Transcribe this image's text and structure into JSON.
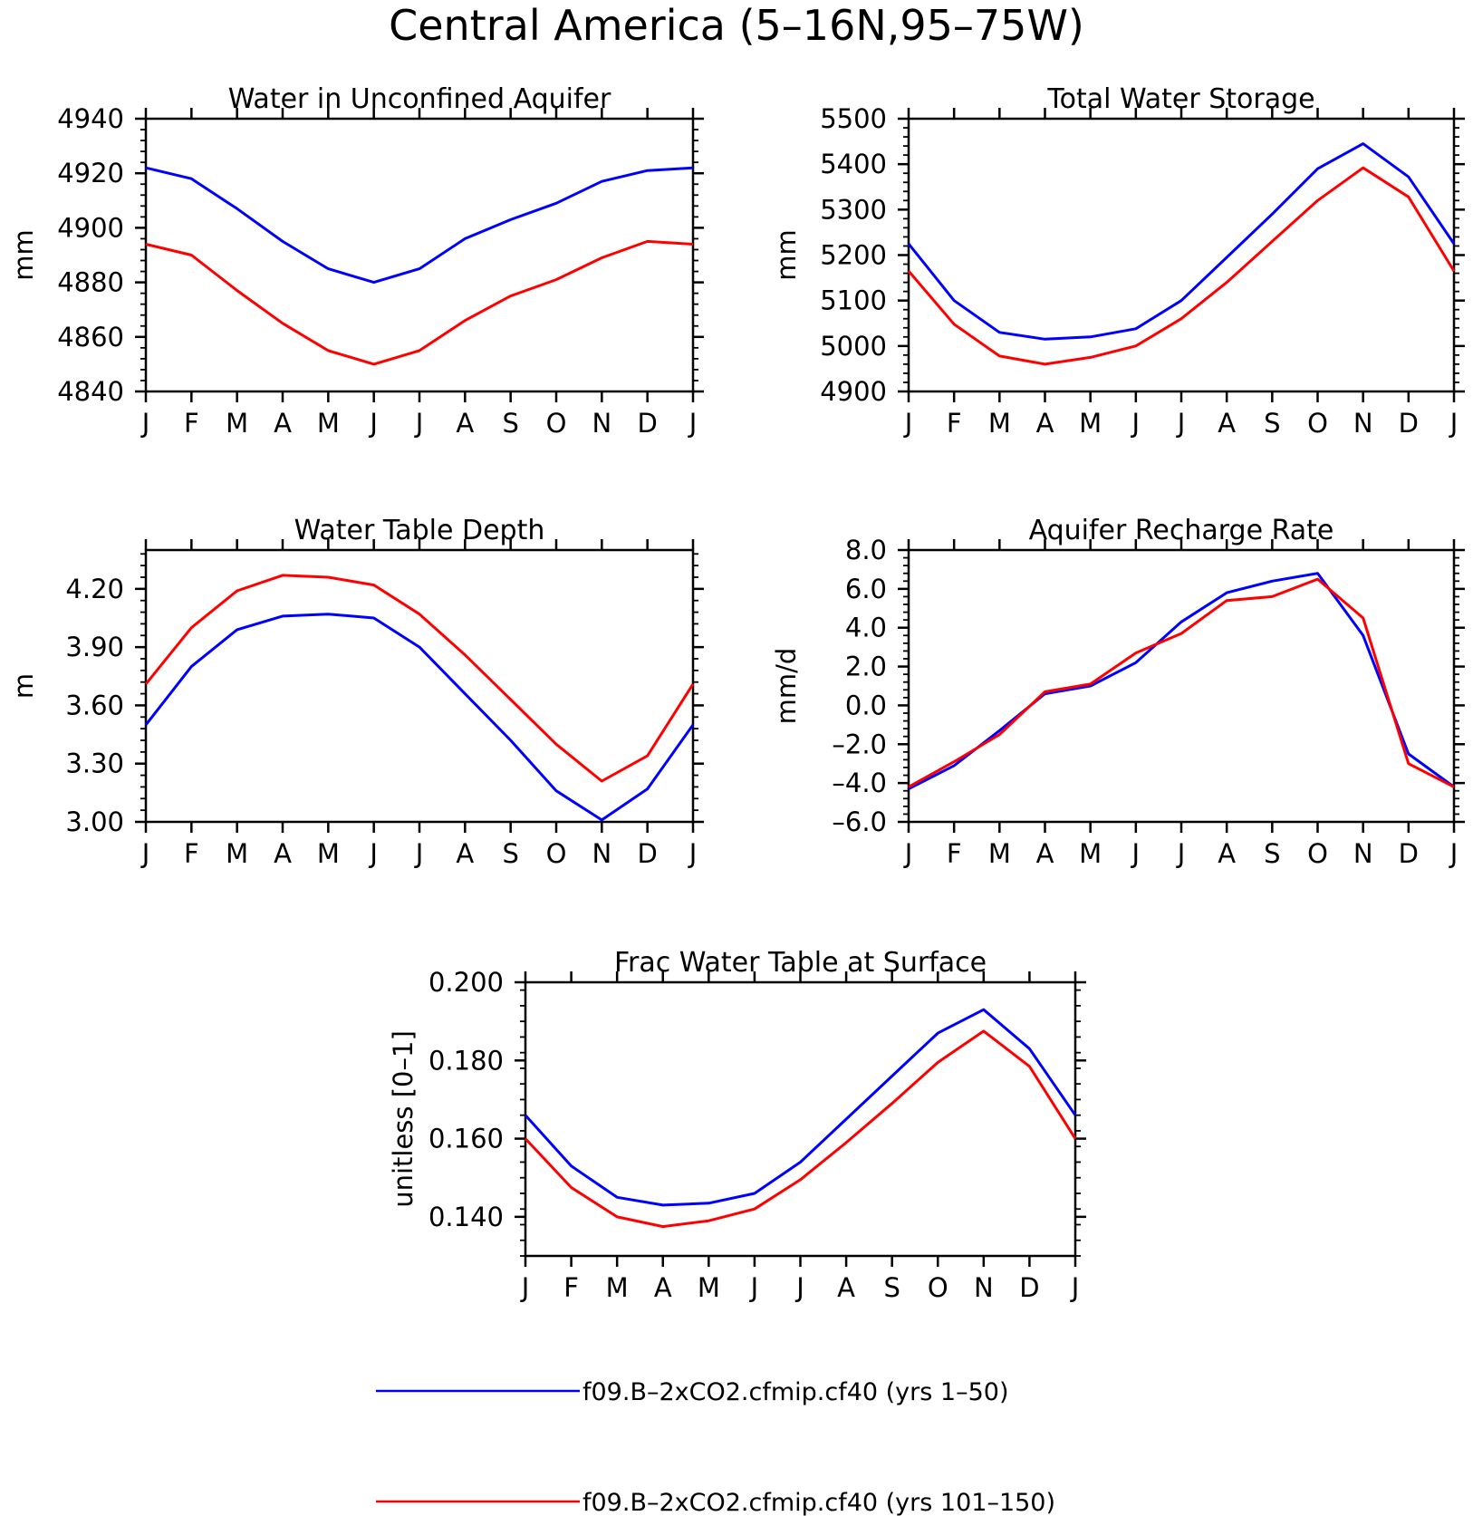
{
  "figure": {
    "title": "Central America (5–16N,95–75W)"
  },
  "legend": {
    "items": [
      {
        "label": "f09.B–2xCO2.cfmip.cf40 (yrs 1–50)",
        "color": "#0000ff"
      },
      {
        "label": "f09.B–2xCO2.cfmip.cf40 (yrs 101–150)",
        "color": "#ff0000"
      }
    ]
  },
  "chart_data": [
    {
      "type": "line",
      "title": "Water in Unconfined Aquifer",
      "ylabel": "mm",
      "xlabel": "",
      "categories": [
        "J",
        "F",
        "M",
        "A",
        "M",
        "J",
        "J",
        "A",
        "S",
        "O",
        "N",
        "D",
        "J"
      ],
      "ylim": [
        4840,
        4940
      ],
      "yticks": [
        "4840",
        "4860",
        "4880",
        "4900",
        "4920",
        "4940"
      ],
      "series": [
        {
          "name": "f09.B–2xCO2.cfmip.cf40 (yrs 1–50)",
          "color": "#0000ff",
          "values": [
            4922,
            4918,
            4907,
            4895,
            4885,
            4880,
            4885,
            4896,
            4903,
            4909,
            4917,
            4921,
            4922
          ]
        },
        {
          "name": "f09.B–2xCO2.cfmip.cf40 (yrs 101–150)",
          "color": "#ff0000",
          "values": [
            4894,
            4890,
            4877,
            4865,
            4855,
            4850,
            4855,
            4866,
            4875,
            4881,
            4889,
            4895,
            4894
          ]
        }
      ]
    },
    {
      "type": "line",
      "title": "Total Water Storage",
      "ylabel": "mm",
      "xlabel": "",
      "categories": [
        "J",
        "F",
        "M",
        "A",
        "M",
        "J",
        "J",
        "A",
        "S",
        "O",
        "N",
        "D",
        "J"
      ],
      "ylim": [
        4900,
        5500
      ],
      "yticks": [
        "4900",
        "5000",
        "5100",
        "5200",
        "5300",
        "5400",
        "5500"
      ],
      "series": [
        {
          "name": "f09.B–2xCO2.cfmip.cf40 (yrs 1–50)",
          "color": "#0000ff",
          "values": [
            5225,
            5100,
            5030,
            5015,
            5020,
            5038,
            5100,
            5195,
            5290,
            5390,
            5445,
            5372,
            5225
          ]
        },
        {
          "name": "f09.B–2xCO2.cfmip.cf40 (yrs 101–150)",
          "color": "#ff0000",
          "values": [
            5165,
            5048,
            4978,
            4960,
            4975,
            5000,
            5060,
            5140,
            5230,
            5320,
            5392,
            5328,
            5165
          ]
        }
      ]
    },
    {
      "type": "line",
      "title": "Water Table Depth",
      "ylabel": "m",
      "xlabel": "",
      "categories": [
        "J",
        "F",
        "M",
        "A",
        "M",
        "J",
        "J",
        "A",
        "S",
        "O",
        "N",
        "D",
        "J"
      ],
      "ylim": [
        3.0,
        4.4
      ],
      "yticks": [
        "3.00",
        "3.30",
        "3.60",
        "3.90",
        "4.20"
      ],
      "series": [
        {
          "name": "f09.B–2xCO2.cfmip.cf40 (yrs 1–50)",
          "color": "#0000ff",
          "values": [
            3.5,
            3.8,
            3.99,
            4.06,
            4.07,
            4.05,
            3.9,
            3.66,
            3.42,
            3.16,
            3.01,
            3.17,
            3.5
          ]
        },
        {
          "name": "f09.B–2xCO2.cfmip.cf40 (yrs 101–150)",
          "color": "#ff0000",
          "values": [
            3.71,
            4.0,
            4.19,
            4.27,
            4.26,
            4.22,
            4.07,
            3.86,
            3.63,
            3.4,
            3.21,
            3.34,
            3.71
          ]
        }
      ]
    },
    {
      "type": "line",
      "title": "Aquifer Recharge Rate",
      "ylabel": "mm/d",
      "xlabel": "",
      "categories": [
        "J",
        "F",
        "M",
        "A",
        "M",
        "J",
        "J",
        "A",
        "S",
        "O",
        "N",
        "D",
        "J"
      ],
      "ylim": [
        -6,
        8
      ],
      "yticks": [
        "–6.0",
        "–4.0",
        "–2.0",
        "0.0",
        "2.0",
        "4.0",
        "6.0",
        "8.0"
      ],
      "series": [
        {
          "name": "f09.B–2xCO2.cfmip.cf40 (yrs 1–50)",
          "color": "#0000ff",
          "values": [
            -4.3,
            -3.1,
            -1.3,
            0.6,
            1.0,
            2.2,
            4.3,
            5.8,
            6.4,
            6.8,
            3.6,
            -2.5,
            -4.2
          ]
        },
        {
          "name": "f09.B–2xCO2.cfmip.cf40 (yrs 101–150)",
          "color": "#ff0000",
          "values": [
            -4.2,
            -2.9,
            -1.5,
            0.7,
            1.1,
            2.7,
            3.7,
            5.4,
            5.6,
            6.5,
            4.5,
            -3.0,
            -4.2
          ]
        }
      ]
    },
    {
      "type": "line",
      "title": "Frac Water Table at Surface",
      "ylabel": "unitless [0–1]",
      "xlabel": "",
      "categories": [
        "J",
        "F",
        "M",
        "A",
        "M",
        "J",
        "J",
        "A",
        "S",
        "O",
        "N",
        "D",
        "J"
      ],
      "ylim": [
        0.13,
        0.2
      ],
      "yticks": [
        "0.140",
        "0.160",
        "0.180",
        "0.200"
      ],
      "series": [
        {
          "name": "f09.B–2xCO2.cfmip.cf40 (yrs 1–50)",
          "color": "#0000ff",
          "values": [
            0.166,
            0.153,
            0.145,
            0.143,
            0.1435,
            0.146,
            0.154,
            0.165,
            0.176,
            0.187,
            0.193,
            0.183,
            0.166
          ]
        },
        {
          "name": "f09.B–2xCO2.cfmip.cf40 (yrs 101–150)",
          "color": "#ff0000",
          "values": [
            0.16,
            0.1475,
            0.14,
            0.1375,
            0.139,
            0.142,
            0.1495,
            0.159,
            0.169,
            0.1795,
            0.1875,
            0.1785,
            0.16
          ]
        }
      ]
    }
  ]
}
